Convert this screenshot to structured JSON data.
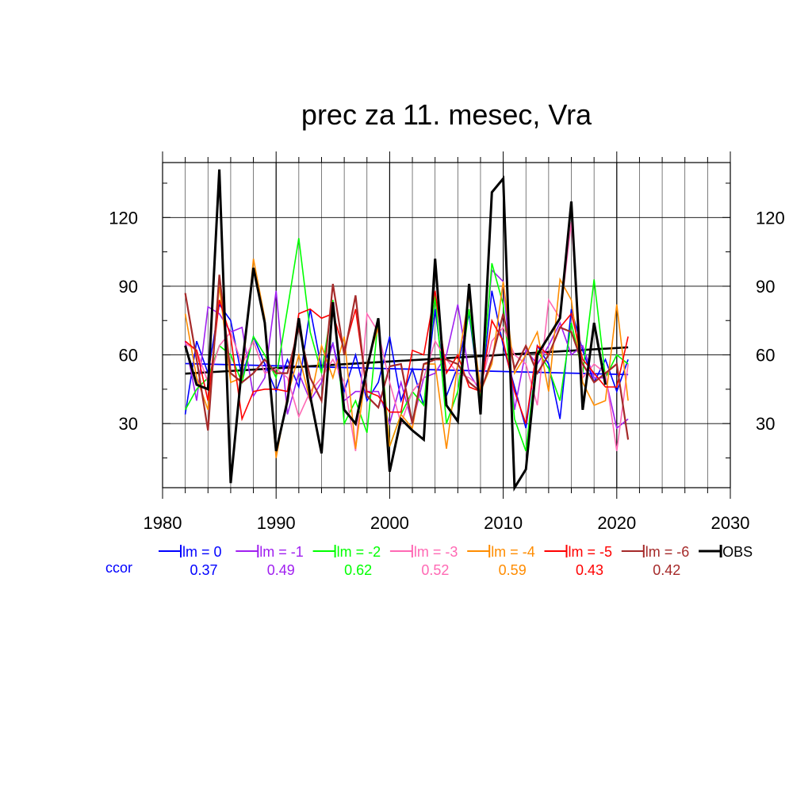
{
  "chart_data": {
    "type": "line",
    "title": "prec za 11. mesec, Vra",
    "xlabel": "",
    "ylabel": "",
    "xlim": [
      1980,
      2030
    ],
    "ylim": [
      2,
      144
    ],
    "xticks": [
      1980,
      1990,
      2000,
      2010,
      2020,
      2030
    ],
    "yticks": [
      30,
      60,
      90,
      120
    ],
    "grid": true,
    "years": [
      1982,
      1983,
      1984,
      1985,
      1986,
      1987,
      1988,
      1989,
      1990,
      1991,
      1992,
      1993,
      1994,
      1995,
      1996,
      1997,
      1998,
      1999,
      2000,
      2001,
      2002,
      2003,
      2004,
      2005,
      2006,
      2007,
      2008,
      2009,
      2010,
      2011,
      2012,
      2013,
      2014,
      2015,
      2016,
      2017,
      2018,
      2019,
      2020,
      2021
    ],
    "series": [
      {
        "name": "lm = 0",
        "color": "#0000ff",
        "width": 1.6,
        "values": [
          34,
          66,
          52,
          82,
          75,
          50,
          68,
          56,
          44,
          58,
          46,
          80,
          54,
          65,
          44,
          60,
          40,
          48,
          68,
          40,
          54,
          38,
          80,
          42,
          55,
          78,
          40,
          88,
          64,
          46,
          28,
          64,
          56,
          32,
          80,
          62,
          48,
          58,
          44,
          58
        ],
        "trend": [
          56.2,
          51.4
        ]
      },
      {
        "name": "lm = -1",
        "color": "#a020f0",
        "width": 1.6,
        "values": [
          66,
          40,
          81,
          78,
          70,
          72,
          42,
          50,
          88,
          34,
          52,
          40,
          48,
          65,
          40,
          44,
          44,
          44,
          30,
          48,
          30,
          50,
          52,
          60,
          82,
          52,
          44,
          97,
          92,
          36,
          62,
          56,
          64,
          74,
          60,
          64,
          50,
          50,
          28,
          32
        ]
      },
      {
        "name": "lm = -2",
        "color": "#00ff00",
        "width": 1.6,
        "values": [
          36,
          45,
          50,
          64,
          60,
          48,
          68,
          60,
          50,
          80,
          111,
          70,
          52,
          84,
          30,
          40,
          26,
          76,
          20,
          34,
          44,
          38,
          86,
          30,
          44,
          80,
          40,
          100,
          82,
          32,
          18,
          62,
          54,
          40,
          74,
          52,
          93,
          50,
          60,
          56
        ]
      },
      {
        "name": "lm = -3",
        "color": "#ff69b4",
        "width": 1.6,
        "values": [
          65,
          62,
          48,
          64,
          70,
          56,
          66,
          52,
          54,
          50,
          33,
          44,
          50,
          58,
          48,
          18,
          78,
          70,
          48,
          30,
          44,
          50,
          66,
          58,
          52,
          50,
          46,
          66,
          72,
          60,
          56,
          38,
          84,
          76,
          118,
          50,
          56,
          52,
          18,
          56
        ]
      },
      {
        "name": "lm = -4",
        "color": "#ff8c00",
        "width": 1.6,
        "values": [
          78,
          50,
          36,
          90,
          48,
          50,
          102,
          76,
          15,
          42,
          60,
          40,
          64,
          50,
          68,
          19,
          56,
          72,
          20,
          34,
          28,
          56,
          56,
          19,
          56,
          86,
          44,
          56,
          92,
          52,
          60,
          70,
          44,
          93,
          84,
          48,
          38,
          40,
          82,
          40
        ]
      },
      {
        "name": "lm = -5",
        "color": "#ff0000",
        "width": 1.6,
        "values": [
          66,
          62,
          40,
          84,
          68,
          32,
          44,
          45,
          45,
          44,
          78,
          80,
          76,
          78,
          62,
          80,
          44,
          42,
          35,
          35,
          62,
          60,
          88,
          52,
          60,
          46,
          44,
          75,
          66,
          44,
          30,
          64,
          60,
          72,
          78,
          58,
          52,
          46,
          46,
          68
        ]
      },
      {
        "name": "lm = -6",
        "color": "#a52a2a",
        "width": 2.2,
        "values": [
          87,
          58,
          27,
          95,
          52,
          48,
          52,
          58,
          52,
          52,
          72,
          50,
          40,
          91,
          60,
          86,
          42,
          37,
          55,
          56,
          30,
          56,
          58,
          58,
          56,
          48,
          44,
          58,
          78,
          54,
          64,
          52,
          60,
          72,
          70,
          56,
          48,
          52,
          56,
          23
        ]
      },
      {
        "name": "OBS",
        "color": "#000000",
        "width": 3.0,
        "values": [
          64,
          47,
          45,
          141,
          4,
          55,
          98,
          74,
          18,
          40,
          76,
          42,
          17,
          83,
          36,
          30,
          54,
          76,
          9,
          32,
          27,
          23,
          102,
          38,
          31,
          91,
          34,
          131,
          137,
          2,
          10,
          60,
          68,
          76,
          127,
          36,
          74,
          47,
          null,
          null
        ],
        "trend": [
          51.8,
          63.3
        ]
      }
    ],
    "ccor": {
      "label": "ccor",
      "values": [
        "0.37",
        "0.49",
        "0.62",
        "0.52",
        "0.59",
        "0.43",
        "0.42"
      ]
    }
  }
}
